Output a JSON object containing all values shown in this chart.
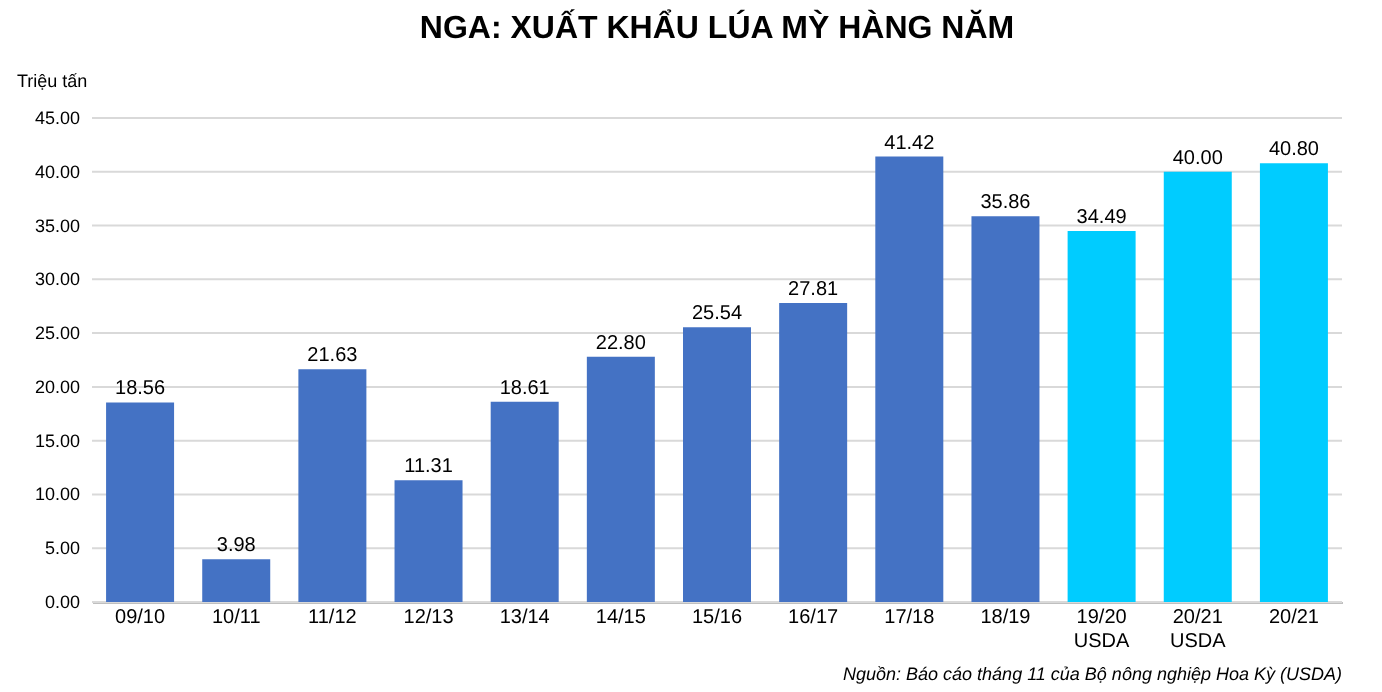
{
  "chart_data": {
    "type": "bar",
    "title": "NGA: XUẤT KHẨU LÚA MỲ HÀNG NĂM",
    "ylabel": "Triệu tấn",
    "categories": [
      "09/10",
      "10/11",
      "11/12",
      "12/13",
      "13/14",
      "14/15",
      "15/16",
      "16/17",
      "17/18",
      "18/19",
      "19/20 USDA",
      "20/21 USDA",
      "20/21"
    ],
    "values": [
      18.56,
      3.98,
      21.63,
      11.31,
      18.61,
      22.8,
      25.54,
      27.81,
      41.42,
      35.86,
      34.49,
      40.0,
      40.8
    ],
    "value_labels": [
      "18.56",
      "3.98",
      "21.63",
      "11.31",
      "18.61",
      "22.80",
      "25.54",
      "27.81",
      "41.42",
      "35.86",
      "34.49",
      "40.00",
      "40.80"
    ],
    "colors": [
      "#4472c4",
      "#4472c4",
      "#4472c4",
      "#4472c4",
      "#4472c4",
      "#4472c4",
      "#4472c4",
      "#4472c4",
      "#4472c4",
      "#4472c4",
      "#00ccff",
      "#00ccff",
      "#00ccff"
    ],
    "ylim": [
      0,
      45
    ],
    "yticks": [
      {
        "value": 0,
        "label": "0.00"
      },
      {
        "value": 5,
        "label": "5.00"
      },
      {
        "value": 10,
        "label": "10.00"
      },
      {
        "value": 15,
        "label": "15.00"
      },
      {
        "value": 20,
        "label": "20.00"
      },
      {
        "value": 25,
        "label": "25.00"
      },
      {
        "value": 30,
        "label": "30.00"
      },
      {
        "value": 35,
        "label": "35.00"
      },
      {
        "value": 40,
        "label": "40.00"
      },
      {
        "value": 45,
        "label": "45.00"
      }
    ],
    "grid": "y",
    "annotations": [
      "Nguồn: Báo cáo tháng 11 của Bộ nông nghiệp Hoa Kỳ (USDA)"
    ]
  }
}
